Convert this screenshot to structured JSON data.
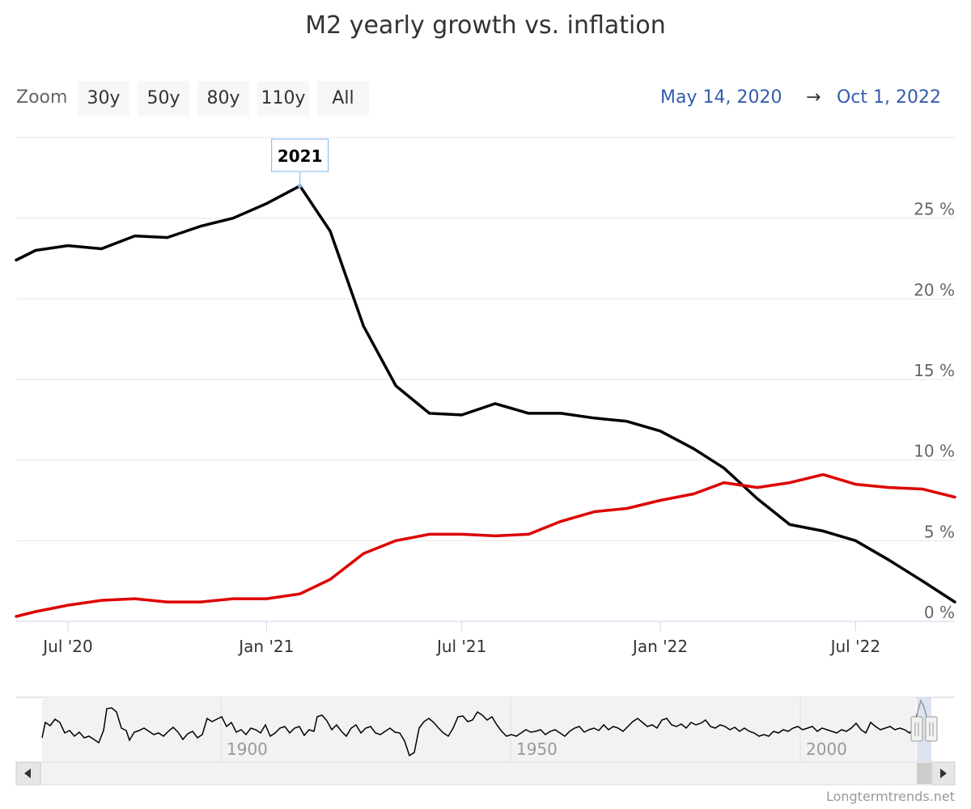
{
  "title": "M2 yearly growth vs. inflation",
  "zoom": {
    "label": "Zoom",
    "buttons": [
      "30y",
      "50y",
      "80y",
      "110y",
      "All"
    ]
  },
  "range": {
    "from": "May 14, 2020",
    "arrow": "→",
    "to": "Oct 1, 2022"
  },
  "tooltip": {
    "label": "2021"
  },
  "navigator": {
    "ticks": [
      "1900",
      "1950",
      "2000"
    ]
  },
  "credit": "Longtermtrends.net",
  "colors": {
    "m2": "#000000",
    "inflation": "#dd0000",
    "range_text": "#335cad"
  },
  "chart_data": {
    "type": "line",
    "title": "M2 yearly growth vs. inflation",
    "x_tick_labels": [
      "Jul '20",
      "Jan '21",
      "Jul '21",
      "Jan '22",
      "Jul '22"
    ],
    "y_tick_labels": [
      "0 %",
      "5 %",
      "10 %",
      "15 %",
      "20 %",
      "25 %"
    ],
    "ylim": [
      0,
      30
    ],
    "xlim": [
      "2020-05-14",
      "2022-10-01"
    ],
    "grid": true,
    "series": [
      {
        "key": "m2",
        "points": [
          [
            "2020-05-14",
            22.4
          ],
          [
            "2020-06-01",
            23.0
          ],
          [
            "2020-07-01",
            23.3
          ],
          [
            "2020-08-01",
            23.1
          ],
          [
            "2020-09-01",
            23.9
          ],
          [
            "2020-10-01",
            23.8
          ],
          [
            "2020-11-01",
            24.5
          ],
          [
            "2020-12-01",
            25.0
          ],
          [
            "2021-01-01",
            25.9
          ],
          [
            "2021-02-01",
            27.0
          ],
          [
            "2021-03-01",
            24.2
          ],
          [
            "2021-04-01",
            18.3
          ],
          [
            "2021-05-01",
            14.6
          ],
          [
            "2021-06-01",
            12.9
          ],
          [
            "2021-07-01",
            12.8
          ],
          [
            "2021-08-01",
            13.5
          ],
          [
            "2021-09-01",
            12.9
          ],
          [
            "2021-10-01",
            12.9
          ],
          [
            "2021-11-01",
            12.6
          ],
          [
            "2021-12-01",
            12.4
          ],
          [
            "2022-01-01",
            11.8
          ],
          [
            "2022-02-01",
            10.7
          ],
          [
            "2022-03-01",
            9.5
          ],
          [
            "2022-04-01",
            7.6
          ],
          [
            "2022-05-01",
            6.0
          ],
          [
            "2022-06-01",
            5.6
          ],
          [
            "2022-07-01",
            5.0
          ],
          [
            "2022-08-01",
            3.8
          ],
          [
            "2022-09-01",
            2.5
          ],
          [
            "2022-10-01",
            1.2
          ]
        ]
      },
      {
        "key": "inflation",
        "points": [
          [
            "2020-05-14",
            0.3
          ],
          [
            "2020-06-01",
            0.6
          ],
          [
            "2020-07-01",
            1.0
          ],
          [
            "2020-08-01",
            1.3
          ],
          [
            "2020-09-01",
            1.4
          ],
          [
            "2020-10-01",
            1.2
          ],
          [
            "2020-11-01",
            1.2
          ],
          [
            "2020-12-01",
            1.4
          ],
          [
            "2021-01-01",
            1.4
          ],
          [
            "2021-02-01",
            1.7
          ],
          [
            "2021-03-01",
            2.6
          ],
          [
            "2021-04-01",
            4.2
          ],
          [
            "2021-05-01",
            5.0
          ],
          [
            "2021-06-01",
            5.4
          ],
          [
            "2021-07-01",
            5.4
          ],
          [
            "2021-08-01",
            5.3
          ],
          [
            "2021-09-01",
            5.4
          ],
          [
            "2021-10-01",
            6.2
          ],
          [
            "2021-11-01",
            6.8
          ],
          [
            "2021-12-01",
            7.0
          ],
          [
            "2022-01-01",
            7.5
          ],
          [
            "2022-02-01",
            7.9
          ],
          [
            "2022-03-01",
            8.6
          ],
          [
            "2022-04-01",
            8.3
          ],
          [
            "2022-05-01",
            8.6
          ],
          [
            "2022-06-01",
            9.1
          ],
          [
            "2022-07-01",
            8.5
          ],
          [
            "2022-08-01",
            8.3
          ],
          [
            "2022-09-01",
            8.2
          ],
          [
            "2022-10-01",
            7.7
          ]
        ]
      }
    ],
    "highlight": {
      "series": "m2",
      "x": "2021-02-01"
    }
  }
}
